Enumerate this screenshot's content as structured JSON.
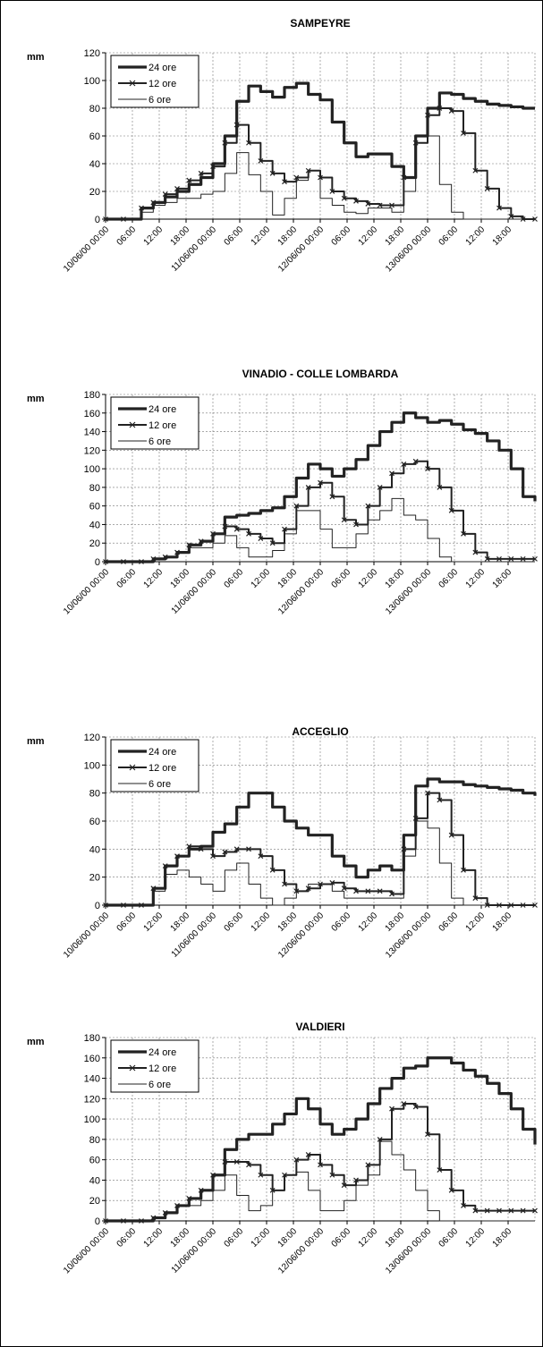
{
  "chart_data": [
    {
      "type": "line",
      "title": "SAMPEYRE",
      "ylabel": "mm",
      "ylim": [
        0,
        120
      ],
      "yticks": [
        0,
        20,
        40,
        60,
        80,
        100,
        120
      ],
      "xlim": [
        0,
        72
      ],
      "xtick_labels": [
        "10/06/00 00:00",
        "06:00",
        "12:00",
        "18:00",
        "11/06/00 00:00",
        "06:00",
        "12:00",
        "18:00",
        "12/06/00 00:00",
        "06:00",
        "12:00",
        "18:00",
        "13/06/00 00:00",
        "06:00",
        "12:00",
        "18:00"
      ],
      "grid": true,
      "legend_position": "top-left",
      "series": [
        {
          "name": "24 ore",
          "style": "thick",
          "x": [
            0,
            3,
            6,
            8,
            10,
            12,
            14,
            16,
            18,
            20,
            22,
            24,
            26,
            28,
            30,
            32,
            34,
            36,
            38,
            40,
            42,
            44,
            46,
            48,
            50,
            52,
            54,
            56,
            58,
            60,
            62,
            64,
            66,
            68,
            70,
            72
          ],
          "y": [
            0,
            0,
            8,
            12,
            16,
            20,
            25,
            30,
            40,
            60,
            85,
            96,
            92,
            88,
            95,
            98,
            90,
            86,
            70,
            55,
            45,
            47,
            47,
            38,
            30,
            60,
            80,
            91,
            90,
            87,
            85,
            83,
            82,
            81,
            80,
            80
          ]
        },
        {
          "name": "12 ore",
          "style": "marker",
          "x": [
            0,
            3,
            6,
            8,
            10,
            12,
            14,
            16,
            18,
            20,
            22,
            24,
            26,
            28,
            30,
            32,
            34,
            36,
            38,
            40,
            42,
            44,
            46,
            48,
            50,
            52,
            54,
            56,
            58,
            60,
            62,
            64,
            66,
            68,
            70,
            72
          ],
          "y": [
            0,
            0,
            8,
            12,
            18,
            22,
            28,
            33,
            38,
            55,
            68,
            55,
            42,
            33,
            27,
            30,
            35,
            30,
            20,
            15,
            13,
            11,
            10,
            10,
            30,
            55,
            75,
            80,
            78,
            62,
            35,
            22,
            8,
            2,
            0,
            0
          ]
        },
        {
          "name": "6 ore",
          "style": "thin",
          "x": [
            0,
            3,
            6,
            8,
            10,
            12,
            14,
            16,
            18,
            20,
            22,
            24,
            26,
            28,
            30,
            32,
            34,
            36,
            38,
            40,
            42,
            44,
            46,
            48,
            50,
            52,
            54,
            56,
            58,
            60,
            62,
            64,
            66,
            68,
            70,
            72
          ],
          "y": [
            0,
            0,
            5,
            10,
            12,
            15,
            15,
            18,
            20,
            33,
            48,
            32,
            20,
            3,
            15,
            28,
            35,
            15,
            10,
            5,
            4,
            8,
            8,
            5,
            20,
            55,
            60,
            25,
            5,
            0,
            0,
            0,
            0,
            0,
            0,
            0
          ]
        }
      ]
    },
    {
      "type": "line",
      "title": "VINADIO - COLLE LOMBARDA",
      "ylabel": "mm",
      "ylim": [
        0,
        180
      ],
      "yticks": [
        0,
        20,
        40,
        60,
        80,
        100,
        120,
        140,
        160,
        180
      ],
      "xlim": [
        0,
        72
      ],
      "xtick_labels": [
        "10/06/00 00:00",
        "06:00",
        "12:00",
        "18:00",
        "11/06/00 00:00",
        "06:00",
        "12:00",
        "18:00",
        "12/06/00 00:00",
        "06:00",
        "12:00",
        "18:00",
        "13/06/00 00:00",
        "06:00",
        "12:00",
        "18:00"
      ],
      "grid": true,
      "legend_position": "top-left",
      "series": [
        {
          "name": "24 ore",
          "style": "thick",
          "x": [
            0,
            3,
            6,
            8,
            10,
            12,
            14,
            16,
            18,
            20,
            22,
            24,
            26,
            28,
            30,
            32,
            34,
            36,
            38,
            40,
            42,
            44,
            46,
            48,
            50,
            52,
            54,
            56,
            58,
            60,
            62,
            64,
            66,
            68,
            70,
            72
          ],
          "y": [
            0,
            0,
            0,
            3,
            5,
            10,
            18,
            22,
            30,
            48,
            50,
            52,
            55,
            58,
            70,
            90,
            105,
            100,
            92,
            100,
            110,
            125,
            140,
            150,
            160,
            155,
            150,
            152,
            148,
            142,
            138,
            130,
            120,
            100,
            70,
            65
          ]
        },
        {
          "name": "12 ore",
          "style": "marker",
          "x": [
            0,
            3,
            6,
            8,
            10,
            12,
            14,
            16,
            18,
            20,
            22,
            24,
            26,
            28,
            30,
            32,
            34,
            36,
            38,
            40,
            42,
            44,
            46,
            48,
            50,
            52,
            54,
            56,
            58,
            60,
            62,
            64,
            66,
            68,
            70,
            72
          ],
          "y": [
            0,
            0,
            0,
            3,
            5,
            10,
            18,
            22,
            30,
            38,
            35,
            30,
            25,
            20,
            35,
            60,
            80,
            85,
            70,
            45,
            40,
            60,
            80,
            95,
            105,
            108,
            100,
            80,
            55,
            30,
            10,
            3,
            3,
            3,
            3,
            3
          ]
        },
        {
          "name": "6 ore",
          "style": "thin",
          "x": [
            0,
            3,
            6,
            8,
            10,
            12,
            14,
            16,
            18,
            20,
            22,
            24,
            26,
            28,
            30,
            32,
            34,
            36,
            38,
            40,
            42,
            44,
            46,
            48,
            50,
            52,
            54,
            56,
            58,
            60,
            62,
            64,
            66,
            68,
            70,
            72
          ],
          "y": [
            0,
            0,
            0,
            3,
            5,
            10,
            15,
            15,
            20,
            28,
            15,
            5,
            5,
            12,
            30,
            55,
            55,
            35,
            15,
            15,
            30,
            45,
            55,
            68,
            50,
            45,
            25,
            5,
            0,
            0,
            0,
            0,
            0,
            0,
            0,
            0
          ]
        }
      ]
    },
    {
      "type": "line",
      "title": "ACCEGLIO",
      "ylabel": "mm",
      "ylim": [
        0,
        120
      ],
      "yticks": [
        0,
        20,
        40,
        60,
        80,
        100,
        120
      ],
      "xlim": [
        0,
        72
      ],
      "xtick_labels": [
        "10/06/00 00:00",
        "06:00",
        "12:00",
        "18:00",
        "11/06/00 00:00",
        "06:00",
        "12:00",
        "18:00",
        "12/06/00 00:00",
        "06:00",
        "12:00",
        "18:00",
        "13/06/00 00:00",
        "06:00",
        "12:00",
        "18:00"
      ],
      "grid": true,
      "legend_position": "top-left",
      "series": [
        {
          "name": "24 ore",
          "style": "thick",
          "x": [
            0,
            3,
            6,
            8,
            10,
            12,
            14,
            16,
            18,
            20,
            22,
            24,
            26,
            28,
            30,
            32,
            34,
            36,
            38,
            40,
            42,
            44,
            46,
            48,
            50,
            52,
            54,
            56,
            58,
            60,
            62,
            64,
            66,
            68,
            70,
            72
          ],
          "y": [
            0,
            0,
            0,
            12,
            28,
            35,
            40,
            42,
            52,
            58,
            70,
            80,
            80,
            70,
            60,
            55,
            50,
            50,
            35,
            28,
            20,
            25,
            28,
            25,
            50,
            85,
            90,
            88,
            88,
            86,
            85,
            84,
            83,
            82,
            80,
            78
          ]
        },
        {
          "name": "12 ore",
          "style": "marker",
          "x": [
            0,
            3,
            6,
            8,
            10,
            12,
            14,
            16,
            18,
            20,
            22,
            24,
            26,
            28,
            30,
            32,
            34,
            36,
            38,
            40,
            42,
            44,
            46,
            48,
            50,
            52,
            54,
            56,
            58,
            60,
            62,
            64,
            66,
            68,
            70,
            72
          ],
          "y": [
            0,
            0,
            0,
            12,
            28,
            35,
            42,
            40,
            35,
            38,
            40,
            40,
            35,
            25,
            15,
            10,
            12,
            15,
            16,
            12,
            10,
            10,
            10,
            8,
            40,
            62,
            80,
            75,
            50,
            25,
            5,
            0,
            0,
            0,
            0,
            0
          ]
        },
        {
          "name": "6 ore",
          "style": "thin",
          "x": [
            0,
            3,
            6,
            8,
            10,
            12,
            14,
            16,
            18,
            20,
            22,
            24,
            26,
            28,
            30,
            32,
            34,
            36,
            38,
            40,
            42,
            44,
            46,
            48,
            50,
            52,
            54,
            56,
            58,
            60,
            62,
            64,
            66,
            68,
            70,
            72
          ],
          "y": [
            0,
            0,
            0,
            10,
            22,
            25,
            20,
            15,
            10,
            25,
            30,
            15,
            5,
            0,
            5,
            10,
            15,
            15,
            10,
            5,
            5,
            5,
            5,
            5,
            35,
            60,
            55,
            30,
            5,
            0,
            0,
            0,
            0,
            0,
            0,
            0
          ]
        }
      ]
    },
    {
      "type": "line",
      "title": "VALDIERI",
      "ylabel": "mm",
      "ylim": [
        0,
        180
      ],
      "yticks": [
        0,
        20,
        40,
        60,
        80,
        100,
        120,
        140,
        160,
        180
      ],
      "xlim": [
        0,
        72
      ],
      "xtick_labels": [
        "10/06/00 00:00",
        "06:00",
        "12:00",
        "18:00",
        "11/06/00 00:00",
        "06:00",
        "12:00",
        "18:00",
        "12/06/00 00:00",
        "06:00",
        "12:00",
        "18:00",
        "13/06/00 00:00",
        "06:00",
        "12:00",
        "18:00"
      ],
      "grid": true,
      "legend_position": "top-left",
      "series": [
        {
          "name": "24 ore",
          "style": "thick",
          "x": [
            0,
            3,
            6,
            8,
            10,
            12,
            14,
            16,
            18,
            20,
            22,
            24,
            26,
            28,
            30,
            32,
            34,
            36,
            38,
            40,
            42,
            44,
            46,
            48,
            50,
            52,
            54,
            56,
            58,
            60,
            62,
            64,
            66,
            68,
            70,
            72
          ],
          "y": [
            0,
            0,
            0,
            3,
            8,
            15,
            22,
            30,
            45,
            70,
            80,
            85,
            85,
            95,
            105,
            120,
            110,
            95,
            85,
            90,
            100,
            115,
            130,
            140,
            150,
            152,
            160,
            160,
            155,
            148,
            142,
            135,
            125,
            110,
            90,
            75
          ]
        },
        {
          "name": "12 ore",
          "style": "marker",
          "x": [
            0,
            3,
            6,
            8,
            10,
            12,
            14,
            16,
            18,
            20,
            22,
            24,
            26,
            28,
            30,
            32,
            34,
            36,
            38,
            40,
            42,
            44,
            46,
            48,
            50,
            52,
            54,
            56,
            58,
            60,
            62,
            64,
            66,
            68,
            70,
            72
          ],
          "y": [
            0,
            0,
            0,
            3,
            8,
            15,
            22,
            30,
            45,
            58,
            58,
            55,
            45,
            30,
            45,
            60,
            65,
            55,
            45,
            35,
            40,
            55,
            80,
            110,
            115,
            112,
            85,
            50,
            30,
            15,
            10,
            10,
            10,
            10,
            10,
            10
          ]
        },
        {
          "name": "6 ore",
          "style": "thin",
          "x": [
            0,
            3,
            6,
            8,
            10,
            12,
            14,
            16,
            18,
            20,
            22,
            24,
            26,
            28,
            30,
            32,
            34,
            36,
            38,
            40,
            42,
            44,
            46,
            48,
            50,
            52,
            54,
            56,
            58,
            60,
            62,
            64,
            66,
            68,
            70,
            72
          ],
          "y": [
            0,
            0,
            0,
            3,
            8,
            15,
            15,
            20,
            30,
            45,
            25,
            10,
            15,
            30,
            45,
            48,
            30,
            10,
            10,
            20,
            35,
            45,
            78,
            65,
            50,
            30,
            10,
            0,
            0,
            0,
            0,
            0,
            0,
            0,
            0,
            0
          ]
        }
      ]
    }
  ]
}
